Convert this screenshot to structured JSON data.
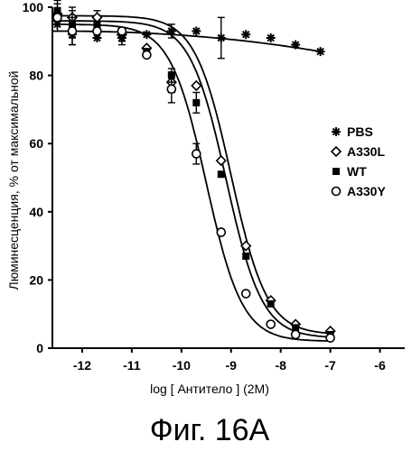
{
  "chart_data": {
    "type": "scatter",
    "title": "",
    "xlabel": "log [ Антитело ] (2M)",
    "ylabel": "Люминесценция, % от максимальной",
    "xlim": [
      -12.6,
      -5.5
    ],
    "ylim": [
      0,
      100
    ],
    "x_ticks": [
      -12,
      -11,
      -10,
      -9,
      -8,
      -7,
      -6
    ],
    "y_ticks": [
      0,
      20,
      40,
      60,
      80,
      100
    ],
    "legend_position": "right",
    "series": [
      {
        "name": "PBS",
        "marker": "asterisk",
        "points": [
          {
            "x": -12.5,
            "y": 95
          },
          {
            "x": -12.2,
            "y": 92,
            "err": 3
          },
          {
            "x": -11.7,
            "y": 91
          },
          {
            "x": -11.2,
            "y": 91,
            "err": 2
          },
          {
            "x": -10.7,
            "y": 92
          },
          {
            "x": -10.2,
            "y": 93,
            "err": 2
          },
          {
            "x": -9.7,
            "y": 93
          },
          {
            "x": -9.2,
            "y": 91,
            "err": 6
          },
          {
            "x": -8.7,
            "y": 92
          },
          {
            "x": -8.2,
            "y": 91
          },
          {
            "x": -7.7,
            "y": 89
          },
          {
            "x": -7.2,
            "y": 87
          }
        ],
        "fit": [
          -12.6,
          93,
          -7.2,
          87
        ]
      },
      {
        "name": "A330L",
        "marker": "diamond",
        "points": [
          {
            "x": -12.5,
            "y": 98
          },
          {
            "x": -12.2,
            "y": 97,
            "err": 3
          },
          {
            "x": -11.7,
            "y": 97,
            "err": 2
          },
          {
            "x": -11.2,
            "y": 92
          },
          {
            "x": -10.7,
            "y": 88
          },
          {
            "x": -10.2,
            "y": 78,
            "err": 3
          },
          {
            "x": -9.7,
            "y": 77
          },
          {
            "x": -9.2,
            "y": 55
          },
          {
            "x": -8.7,
            "y": 30
          },
          {
            "x": -8.2,
            "y": 14
          },
          {
            "x": -7.7,
            "y": 7
          },
          {
            "x": -7.0,
            "y": 5
          }
        ],
        "fit": [
          97.5,
          4,
          -9.0,
          -1.2
        ]
      },
      {
        "name": "WT",
        "marker": "square",
        "points": [
          {
            "x": -12.5,
            "y": 99,
            "err": 3
          },
          {
            "x": -12.2,
            "y": 95,
            "err": 4
          },
          {
            "x": -11.7,
            "y": 95
          },
          {
            "x": -11.2,
            "y": 92,
            "err": 2
          },
          {
            "x": -10.7,
            "y": 87
          },
          {
            "x": -10.2,
            "y": 80,
            "err": 2
          },
          {
            "x": -9.7,
            "y": 72,
            "err": 3
          },
          {
            "x": -9.2,
            "y": 51
          },
          {
            "x": -8.7,
            "y": 27
          },
          {
            "x": -8.2,
            "y": 13
          },
          {
            "x": -7.7,
            "y": 6
          },
          {
            "x": -7.0,
            "y": 4
          }
        ],
        "fit": [
          96,
          3,
          -9.1,
          -1.2
        ]
      },
      {
        "name": "A330Y",
        "marker": "circle",
        "points": [
          {
            "x": -12.5,
            "y": 97,
            "err": 4
          },
          {
            "x": -12.2,
            "y": 93,
            "err": 4
          },
          {
            "x": -11.7,
            "y": 93
          },
          {
            "x": -11.2,
            "y": 93
          },
          {
            "x": -10.7,
            "y": 86
          },
          {
            "x": -10.2,
            "y": 76,
            "err": 4
          },
          {
            "x": -9.7,
            "y": 57,
            "err": 3
          },
          {
            "x": -9.2,
            "y": 34
          },
          {
            "x": -8.7,
            "y": 16
          },
          {
            "x": -8.2,
            "y": 7
          },
          {
            "x": -7.7,
            "y": 4
          },
          {
            "x": -7.0,
            "y": 3
          }
        ],
        "fit": [
          95,
          2,
          -9.5,
          -1.2
        ]
      }
    ]
  },
  "caption": "Фиг. 16А"
}
